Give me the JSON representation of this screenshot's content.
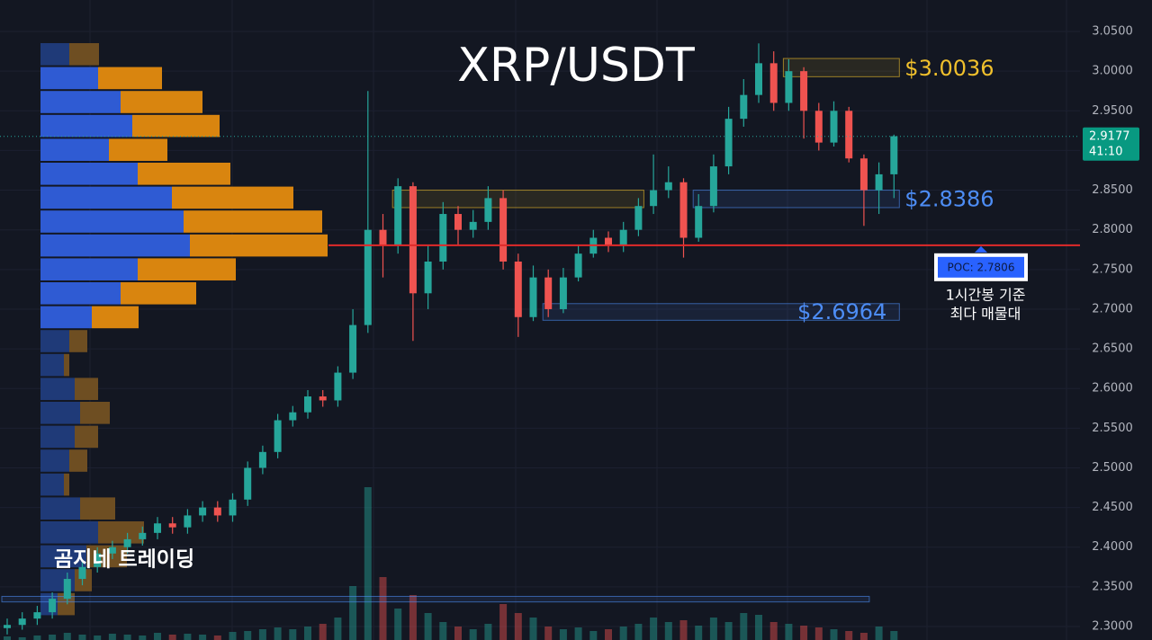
{
  "chart_data": {
    "type": "candlestick",
    "title": "XRP/USDT",
    "watermark": "곰지네 트레이딩",
    "ylim": [
      2.283,
      3.0897
    ],
    "yticks": [
      {
        "value": 3.05,
        "label": "3.0500"
      },
      {
        "value": 3.0,
        "label": "3.0000"
      },
      {
        "value": 2.95,
        "label": "2.9500"
      },
      {
        "value": 2.9,
        "label": "2.9000"
      },
      {
        "value": 2.85,
        "label": "2.8500"
      },
      {
        "value": 2.8,
        "label": "2.8000"
      },
      {
        "value": 2.75,
        "label": "2.7500"
      },
      {
        "value": 2.7,
        "label": "2.7000"
      },
      {
        "value": 2.65,
        "label": "2.6500"
      },
      {
        "value": 2.6,
        "label": "2.6000"
      },
      {
        "value": 2.55,
        "label": "2.5500"
      },
      {
        "value": 2.5,
        "label": "2.5000"
      },
      {
        "value": 2.45,
        "label": "2.4500"
      },
      {
        "value": 2.4,
        "label": "2.4000"
      },
      {
        "value": 2.35,
        "label": "2.3500"
      },
      {
        "value": 2.3,
        "label": "2.3000"
      }
    ],
    "grid": true,
    "up_color": "#26a69a",
    "down_color": "#ef5350",
    "open": [
      2.298,
      2.302,
      2.31,
      2.318,
      2.335,
      2.36,
      2.375,
      2.392,
      2.4,
      2.41,
      2.418,
      2.43,
      2.425,
      2.44,
      2.45,
      2.44,
      2.46,
      2.5,
      2.52,
      2.56,
      2.57,
      2.59,
      2.585,
      2.62,
      2.68,
      2.8,
      2.78,
      2.855,
      2.72,
      2.76,
      2.82,
      2.8,
      2.81,
      2.84,
      2.76,
      2.69,
      2.74,
      2.7,
      2.74,
      2.77,
      2.79,
      2.78,
      2.8,
      2.83,
      2.85,
      2.86,
      2.79,
      2.83,
      2.88,
      2.94,
      2.97,
      3.01,
      2.96,
      3.0,
      2.95,
      2.91,
      2.95,
      2.89,
      2.85,
      2.87
    ],
    "high": [
      2.31,
      2.318,
      2.326,
      2.343,
      2.368,
      2.383,
      2.4,
      2.408,
      2.418,
      2.426,
      2.438,
      2.438,
      2.448,
      2.458,
      2.458,
      2.468,
      2.508,
      2.528,
      2.568,
      2.578,
      2.598,
      2.598,
      2.628,
      2.7,
      2.975,
      2.82,
      2.865,
      2.86,
      2.78,
      2.835,
      2.83,
      2.825,
      2.855,
      2.85,
      2.77,
      2.755,
      2.75,
      2.752,
      2.78,
      2.8,
      2.798,
      2.81,
      2.84,
      2.895,
      2.88,
      2.865,
      2.845,
      2.895,
      2.955,
      2.99,
      3.035,
      3.025,
      3.015,
      3.005,
      2.96,
      2.962,
      2.955,
      2.895,
      2.885,
      2.92
    ],
    "low": [
      2.29,
      2.296,
      2.302,
      2.31,
      2.328,
      2.352,
      2.368,
      2.385,
      2.392,
      2.402,
      2.41,
      2.417,
      2.417,
      2.432,
      2.432,
      2.432,
      2.452,
      2.492,
      2.512,
      2.552,
      2.562,
      2.577,
      2.577,
      2.612,
      2.67,
      2.74,
      2.77,
      2.66,
      2.7,
      2.75,
      2.78,
      2.79,
      2.8,
      2.75,
      2.665,
      2.685,
      2.69,
      2.695,
      2.735,
      2.765,
      2.772,
      2.772,
      2.792,
      2.82,
      2.84,
      2.765,
      2.785,
      2.822,
      2.87,
      2.93,
      2.96,
      2.95,
      2.95,
      2.915,
      2.9,
      2.905,
      2.885,
      2.805,
      2.82,
      2.84
    ],
    "close": [
      2.302,
      2.31,
      2.318,
      2.335,
      2.36,
      2.375,
      2.392,
      2.4,
      2.41,
      2.418,
      2.43,
      2.425,
      2.44,
      2.45,
      2.44,
      2.46,
      2.5,
      2.52,
      2.56,
      2.57,
      2.59,
      2.585,
      2.62,
      2.68,
      2.8,
      2.78,
      2.855,
      2.72,
      2.76,
      2.82,
      2.8,
      2.81,
      2.84,
      2.76,
      2.69,
      2.74,
      2.7,
      2.74,
      2.77,
      2.79,
      2.78,
      2.8,
      2.83,
      2.85,
      2.86,
      2.79,
      2.83,
      2.88,
      2.94,
      2.97,
      3.01,
      2.96,
      3.0,
      2.95,
      2.91,
      2.95,
      2.89,
      2.85,
      2.87,
      2.918
    ],
    "volume": [
      4,
      3,
      5,
      6,
      8,
      6,
      5,
      7,
      6,
      5,
      8,
      6,
      7,
      6,
      5,
      9,
      10,
      12,
      14,
      12,
      15,
      18,
      25,
      60,
      170,
      70,
      35,
      50,
      30,
      20,
      15,
      12,
      18,
      40,
      30,
      25,
      15,
      12,
      14,
      10,
      12,
      15,
      18,
      25,
      20,
      22,
      16,
      25,
      20,
      30,
      28,
      20,
      18,
      16,
      14,
      12,
      10,
      8,
      15,
      10
    ],
    "vlim": [
      0,
      200
    ],
    "last_price": 2.9177,
    "countdown": "41:10",
    "profile": {
      "buy": [
        32,
        64,
        89,
        102,
        76,
        108,
        146,
        159,
        166,
        108,
        89,
        57,
        32,
        26,
        38,
        44,
        38,
        32,
        26,
        44,
        64,
        51,
        38,
        19
      ],
      "sell": [
        33,
        71,
        91,
        97,
        65,
        103,
        135,
        154,
        153,
        109,
        84,
        52,
        20,
        6,
        26,
        33,
        26,
        20,
        6,
        39,
        51,
        45,
        19,
        19
      ],
      "value_area": [
        1,
        11
      ]
    },
    "zones": [
      {
        "price": 3.0036,
        "label": "$3.0036",
        "low": 2.993,
        "high": 3.016,
        "start": 52,
        "end": 59,
        "color": "#f0c02c"
      },
      {
        "price": 2.8386,
        "label": "$2.8386",
        "low": 2.828,
        "high": 2.85,
        "start": 46,
        "end": 59,
        "color": "#4d8df5"
      },
      {
        "low": 2.828,
        "high": 2.85,
        "start": 26,
        "end": 42,
        "color": "#f0c02c"
      },
      {
        "price": 2.6964,
        "label": "$2.6964",
        "low": 2.686,
        "high": 2.707,
        "start": 36,
        "end": 59,
        "color": "#4d8df5"
      },
      {
        "low": 2.331,
        "high": 2.338,
        "start": 0,
        "end": 57,
        "color": "#4d8df5"
      }
    ],
    "poc": {
      "price": 2.7806,
      "label": "POC: 2.7806",
      "note": [
        "1시간봉 기준",
        "최다 매물대"
      ]
    }
  }
}
